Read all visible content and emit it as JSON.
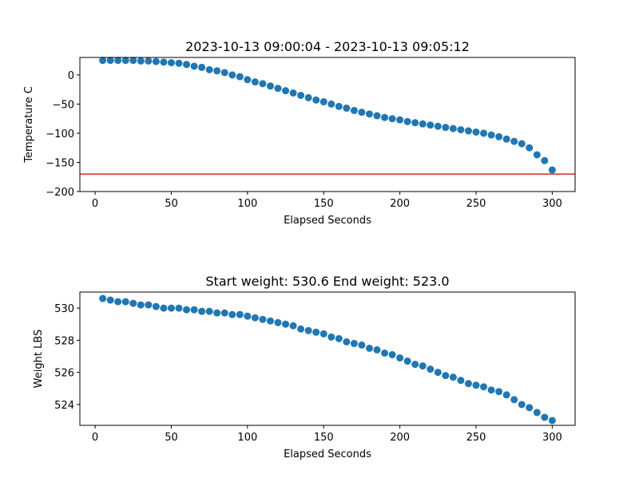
{
  "chart_data": [
    {
      "type": "scatter",
      "title": "2023-10-13 09:00:04 - 2023-10-13 09:05:12",
      "xlabel": "Elapsed Seconds",
      "ylabel": "Temperature C",
      "color": "#1f77b4",
      "x": [
        5,
        10,
        15,
        20,
        25,
        30,
        35,
        40,
        45,
        50,
        55,
        60,
        65,
        70,
        75,
        80,
        85,
        90,
        95,
        100,
        105,
        110,
        115,
        120,
        125,
        130,
        135,
        140,
        145,
        150,
        155,
        160,
        165,
        170,
        175,
        180,
        185,
        190,
        195,
        200,
        205,
        210,
        215,
        220,
        225,
        230,
        235,
        240,
        245,
        250,
        255,
        260,
        265,
        270,
        275,
        280,
        285,
        290,
        295,
        300
      ],
      "y": [
        25,
        25,
        25,
        25,
        25,
        24,
        24,
        23,
        22,
        21,
        20,
        18,
        15,
        13,
        9,
        7,
        4,
        0,
        -3,
        -8,
        -12,
        -15,
        -19,
        -23,
        -27,
        -31,
        -35,
        -39,
        -43,
        -46,
        -50,
        -54,
        -57,
        -61,
        -64,
        -67,
        -70,
        -73,
        -75,
        -77,
        -80,
        -82,
        -84,
        -86,
        -88,
        -90,
        -92,
        -94,
        -96,
        -98,
        -100,
        -103,
        -106,
        -110,
        -114,
        -118,
        -125,
        -137,
        -147,
        -163
      ],
      "xlim": [
        -10,
        315
      ],
      "ylim": [
        -200,
        30
      ],
      "xticks": [
        0,
        50,
        100,
        150,
        200,
        250,
        300
      ],
      "yticks": [
        {
          "value": -200,
          "label": "−200"
        },
        {
          "value": -150,
          "label": "−150"
        },
        {
          "value": -100,
          "label": "−100"
        },
        {
          "value": -50,
          "label": "−50"
        },
        0
      ],
      "hline": {
        "value": -170,
        "color": "#d62728"
      }
    },
    {
      "type": "scatter",
      "title": "Start weight: 530.6 End weight: 523.0",
      "xlabel": "Elapsed Seconds",
      "ylabel": "Weight LBS",
      "color": "#1f77b4",
      "x": [
        5,
        10,
        15,
        20,
        25,
        30,
        35,
        40,
        45,
        50,
        55,
        60,
        65,
        70,
        75,
        80,
        85,
        90,
        95,
        100,
        105,
        110,
        115,
        120,
        125,
        130,
        135,
        140,
        145,
        150,
        155,
        160,
        165,
        170,
        175,
        180,
        185,
        190,
        195,
        200,
        205,
        210,
        215,
        220,
        225,
        230,
        235,
        240,
        245,
        250,
        255,
        260,
        265,
        270,
        275,
        280,
        285,
        290,
        295,
        300
      ],
      "y": [
        530.6,
        530.5,
        530.4,
        530.4,
        530.3,
        530.2,
        530.2,
        530.1,
        530.0,
        530.0,
        530.0,
        529.9,
        529.9,
        529.8,
        529.8,
        529.7,
        529.7,
        529.6,
        529.6,
        529.5,
        529.4,
        529.3,
        529.2,
        529.1,
        529.0,
        528.9,
        528.7,
        528.6,
        528.5,
        528.4,
        528.2,
        528.1,
        527.9,
        527.8,
        527.7,
        527.5,
        527.4,
        527.2,
        527.1,
        526.9,
        526.7,
        526.5,
        526.4,
        526.2,
        526.0,
        525.8,
        525.7,
        525.5,
        525.3,
        525.2,
        525.1,
        524.9,
        524.8,
        524.6,
        524.3,
        524.0,
        523.8,
        523.5,
        523.2,
        523.0
      ],
      "xlim": [
        -10,
        315
      ],
      "ylim": [
        522.7,
        531.0
      ],
      "xticks": [
        0,
        50,
        100,
        150,
        200,
        250,
        300
      ],
      "yticks": [
        524,
        526,
        528,
        530
      ]
    }
  ]
}
